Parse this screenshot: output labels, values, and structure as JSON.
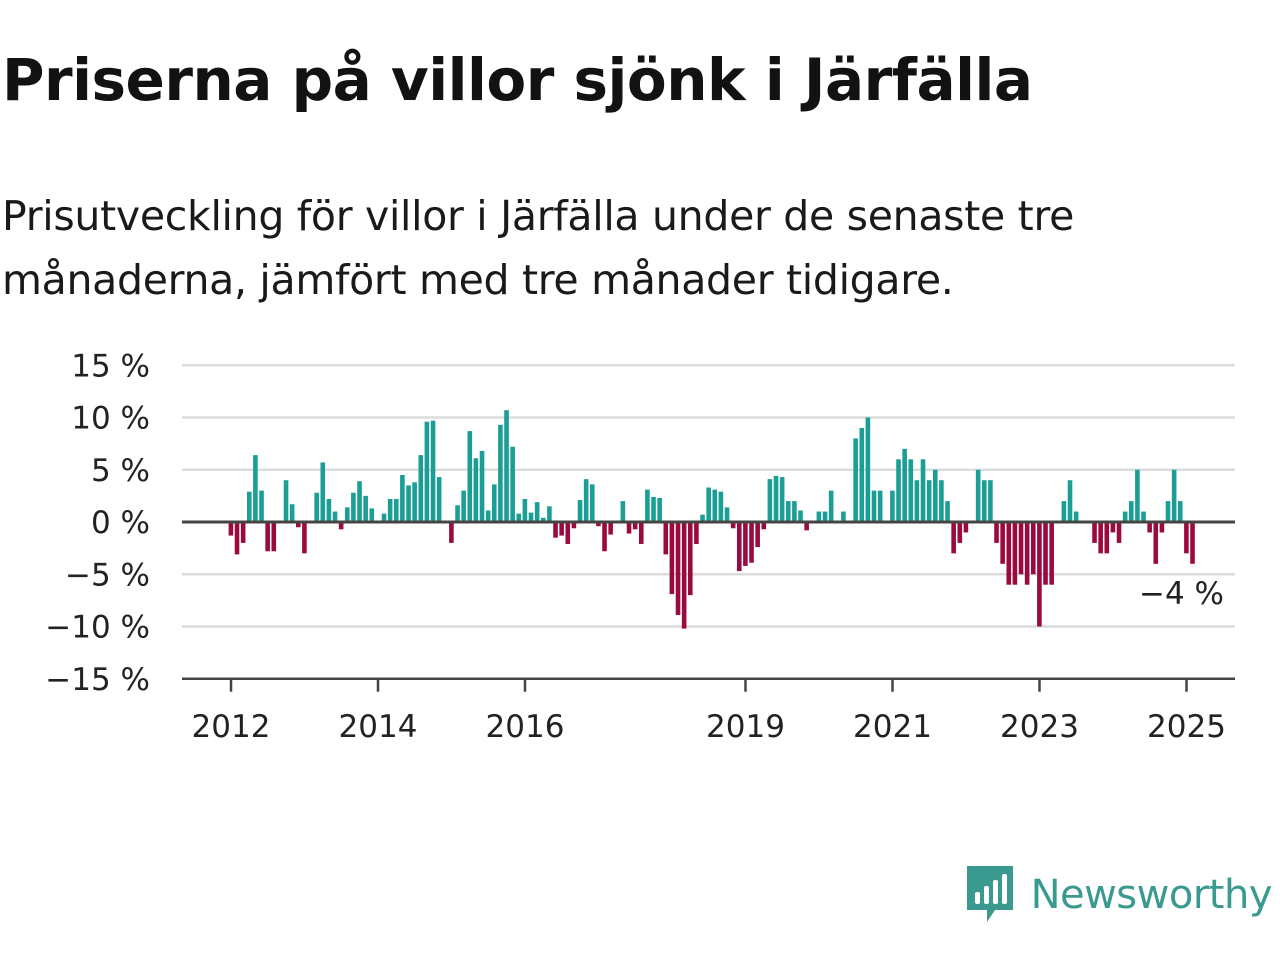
{
  "header": {
    "title": "Priserna på villor sjönk i Järfälla",
    "subtitle": "Prisutveckling för villor i Järfälla under de senaste tre månaderna, jämfört med tre månader tidigare."
  },
  "brand": {
    "name": "Newsworthy",
    "icon": "newsworthy-logo-icon",
    "color": "#3a9a90"
  },
  "colors": {
    "positive": "#1a9e96",
    "negative": "#9b0a3f",
    "grid": "#dcdcdc",
    "axis": "#444444"
  },
  "chart_data": {
    "type": "bar",
    "title": "Priserna på villor sjönk i Järfälla",
    "xlabel": "",
    "ylabel": "",
    "unit": "%",
    "ylim": [
      -15,
      15
    ],
    "y_ticks": [
      15,
      10,
      5,
      0,
      -5,
      -10,
      -15
    ],
    "y_tick_labels": [
      "15 %",
      "10 %",
      "5 %",
      "0 %",
      "−5 %",
      "−10 %",
      "−15 %"
    ],
    "x_ticks": [
      2012,
      2014,
      2016,
      2019,
      2021,
      2023,
      2025
    ],
    "x_tick_labels": [
      "2012",
      "2014",
      "2016",
      "2019",
      "2021",
      "2023",
      "2025"
    ],
    "x_start": "2011-11",
    "grid": true,
    "last_value_label": "−4 %",
    "values": [
      -1.3,
      -3.1,
      -2,
      2.9,
      6.4,
      3,
      -2.8,
      -2.8,
      0,
      4,
      1.7,
      -0.5,
      -3,
      0,
      2.8,
      5.7,
      2.2,
      1,
      -0.7,
      1.4,
      2.8,
      3.9,
      2.5,
      1.3,
      0,
      0.8,
      2.2,
      2.2,
      4.5,
      3.5,
      3.8,
      6.4,
      9.6,
      9.7,
      4.3,
      0,
      -2,
      1.6,
      3,
      8.7,
      6.1,
      6.8,
      1.1,
      3.6,
      9.3,
      10.7,
      7.2,
      0.8,
      2.2,
      0.9,
      1.9,
      0.4,
      1.5,
      -1.5,
      -1.3,
      -2.1,
      -0.6,
      2.1,
      4.1,
      3.6,
      -0.4,
      -2.8,
      -1.2,
      0,
      2,
      -1.1,
      -0.7,
      -2.1,
      3.1,
      2.4,
      2.3,
      -3.1,
      -6.9,
      -8.9,
      -10.2,
      -7,
      -2.1,
      0.7,
      3.3,
      3.1,
      2.9,
      1.4,
      -0.6,
      -4.7,
      -4.2,
      -3.9,
      -2.4,
      -0.7,
      4.1,
      4.4,
      4.3,
      2,
      2,
      1.1,
      -0.8,
      0,
      1,
      1,
      3,
      0,
      1,
      0,
      8,
      9,
      10,
      3,
      3,
      0,
      3,
      6,
      7,
      6,
      4,
      6,
      4,
      5,
      4,
      2,
      -3,
      -2,
      -1,
      0,
      5,
      4,
      4,
      -2,
      -4,
      -6,
      -6,
      -5,
      -6,
      -5,
      -10,
      -6,
      -6,
      0,
      2,
      4,
      1,
      0,
      0,
      -2,
      -3,
      -3,
      -1,
      -2,
      1,
      2,
      5,
      1,
      -1,
      -4,
      -1,
      2,
      5,
      2,
      -3,
      -4
    ]
  }
}
